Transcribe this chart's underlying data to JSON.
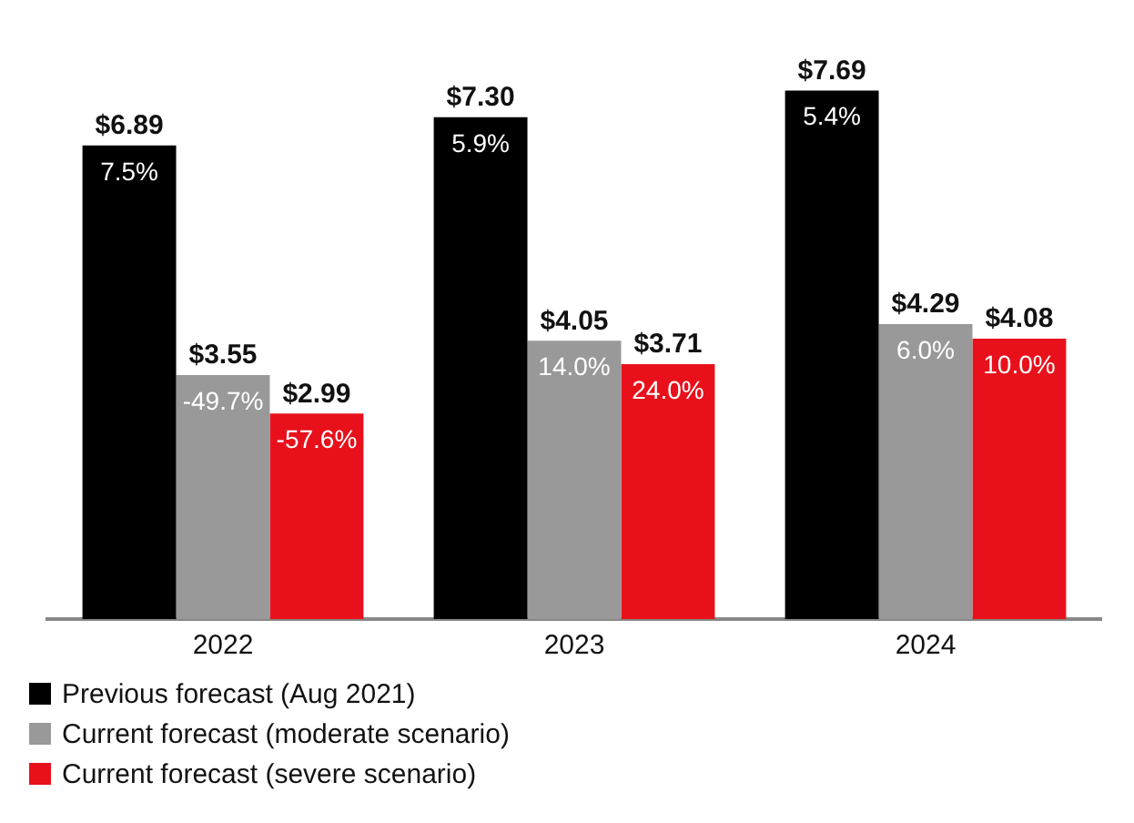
{
  "chart_data": {
    "type": "bar",
    "categories": [
      "2022",
      "2023",
      "2024"
    ],
    "series": [
      {
        "name": "Previous forecast (Aug 2021)",
        "color": "#000000",
        "values": [
          6.89,
          7.3,
          7.69
        ],
        "value_labels": [
          "$6.89",
          "$7.30",
          "$7.69"
        ]
      },
      {
        "name": "Current forecast (moderate scenario)",
        "color": "#999999",
        "values": [
          3.55,
          4.05,
          4.29
        ],
        "value_labels": [
          "$3.55",
          "$4.05",
          "$4.29"
        ]
      },
      {
        "name": "Current forecast (severe scenario)",
        "color": "#e8111b",
        "values": [
          2.99,
          3.71,
          4.08
        ],
        "value_labels": [
          "$2.99",
          "$3.71",
          "$4.08"
        ]
      }
    ],
    "annotations": [
      "7.5%",
      "5.9%",
      "5.4%",
      "-49.7%",
      "14.0%",
      "6.0%",
      "-57.6%",
      "24.0%",
      "10.0%"
    ],
    "grid": false,
    "legend": "bottom left"
  }
}
